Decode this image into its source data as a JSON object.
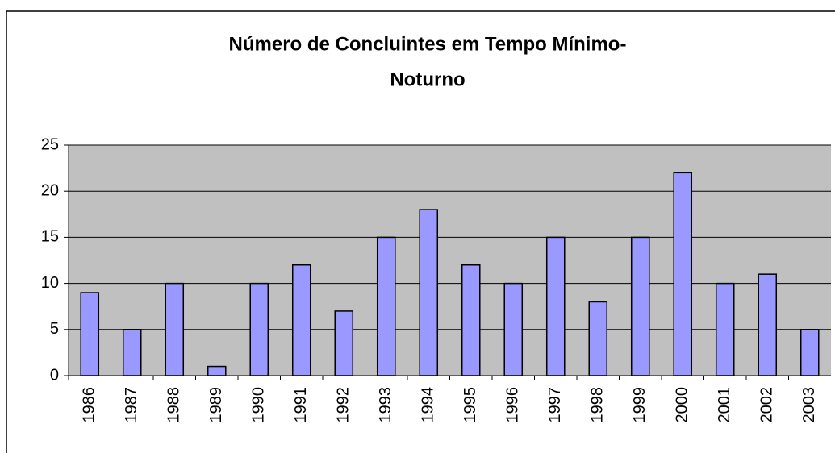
{
  "chart_data": {
    "type": "bar",
    "title": [
      "Número de Concluintes em Tempo Mínimo-",
      "Noturno"
    ],
    "categories": [
      "1986",
      "1987",
      "1988",
      "1989",
      "1990",
      "1991",
      "1992",
      "1993",
      "1994",
      "1995",
      "1996",
      "1997",
      "1998",
      "1999",
      "2000",
      "2001",
      "2002",
      "2003"
    ],
    "values": [
      9,
      5,
      10,
      1,
      10,
      12,
      7,
      15,
      18,
      12,
      10,
      15,
      8,
      15,
      22,
      10,
      11,
      5
    ],
    "color": "#9999ff",
    "ylim": [
      0,
      25
    ],
    "yticks": [
      0,
      5,
      10,
      15,
      20,
      25
    ],
    "grid": true
  }
}
